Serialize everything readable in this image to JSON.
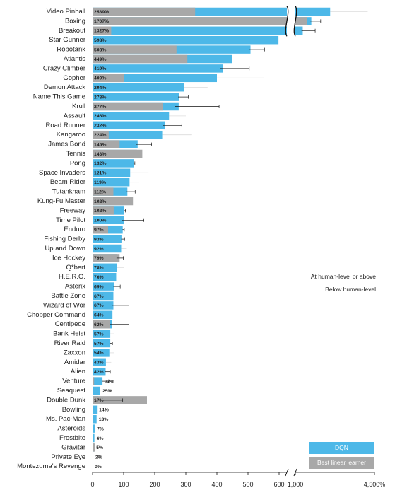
{
  "chart_data": {
    "type": "bar",
    "orientation": "horizontal",
    "x_scale": "broken",
    "x_breaks": [
      [
        650,
        1000
      ]
    ],
    "xlim": [
      0,
      4500
    ],
    "x_ticks": [
      {
        "value": 0,
        "label": "0"
      },
      {
        "value": 100,
        "label": "100"
      },
      {
        "value": 200,
        "label": "200"
      },
      {
        "value": 300,
        "label": "300"
      },
      {
        "value": 400,
        "label": "400"
      },
      {
        "value": 500,
        "label": "500"
      },
      {
        "value": 600,
        "label": "600"
      },
      {
        "value": 1000,
        "label": "1,000"
      },
      {
        "value": 4500,
        "label": "4,500%"
      }
    ],
    "annotations": {
      "above": "At human-level or above",
      "below": "Below human-level"
    },
    "legend": {
      "placement": "bottom-right",
      "entries": [
        {
          "name": "DQN",
          "color": "#4db8e8"
        },
        {
          "name": "Best linear learner",
          "color": "#a8a8a8"
        }
      ]
    },
    "series": [
      {
        "name": "DQN",
        "color": "#4db8e8"
      },
      {
        "name": "Best linear learner",
        "color": "#a8a8a8"
      }
    ],
    "games": [
      {
        "name": "Video Pinball",
        "dqn": 2539,
        "linear": 330,
        "label": "2539%",
        "err": 0,
        "light": 4200
      },
      {
        "name": "Boxing",
        "dqn": 1707,
        "linear": 1500,
        "label": "1707%",
        "err": 30,
        "light": 0
      },
      {
        "name": "Breakout",
        "dqn": 1327,
        "linear": 60,
        "label": "1327%",
        "err": 40,
        "light": 0
      },
      {
        "name": "Star Gunner",
        "dqn": 598,
        "linear": 0,
        "label": "598%",
        "err": 0,
        "light": 0
      },
      {
        "name": "Robotank",
        "dqn": 508,
        "linear": 270,
        "label": "508%",
        "err": 45,
        "light": 0
      },
      {
        "name": "Atlantis",
        "dqn": 449,
        "linear": 305,
        "label": "449%",
        "err": 0,
        "light": 590
      },
      {
        "name": "Crazy Climber",
        "dqn": 419,
        "linear": 0,
        "label": "419%",
        "err": 85,
        "light": 0
      },
      {
        "name": "Gopher",
        "dqn": 400,
        "linear": 102,
        "label": "400%",
        "err": 0,
        "light": 550
      },
      {
        "name": "Demon Attack",
        "dqn": 294,
        "linear": 0,
        "label": "294%",
        "err": 0,
        "light": 370
      },
      {
        "name": "Name This Game",
        "dqn": 278,
        "linear": 0,
        "label": "278%",
        "err": 30,
        "light": 0
      },
      {
        "name": "Krull",
        "dqn": 277,
        "linear": 225,
        "label": "277%",
        "err": 130,
        "light": 0
      },
      {
        "name": "Assault",
        "dqn": 246,
        "linear": 0,
        "label": "246%",
        "err": 0,
        "light": 300
      },
      {
        "name": "Road Runner",
        "dqn": 232,
        "linear": 0,
        "label": "232%",
        "err": 55,
        "light": 0
      },
      {
        "name": "Kangaroo",
        "dqn": 224,
        "linear": 52,
        "label": "224%",
        "err": 0,
        "light": 320
      },
      {
        "name": "James Bond",
        "dqn": 145,
        "linear": 87,
        "label": "145%",
        "err": 45,
        "light": 0
      },
      {
        "name": "Tennis",
        "dqn": 143,
        "linear": 160,
        "label": "143%",
        "err": 0,
        "light": 0
      },
      {
        "name": "Pong",
        "dqn": 132,
        "linear": 0,
        "label": "132%",
        "err": 4,
        "light": 0
      },
      {
        "name": "Space Invaders",
        "dqn": 121,
        "linear": 0,
        "label": "121%",
        "err": 0,
        "light": 180
      },
      {
        "name": "Beam Rider",
        "dqn": 119,
        "linear": 0,
        "label": "119%",
        "err": 0,
        "light": 150
      },
      {
        "name": "Tutankham",
        "dqn": 112,
        "linear": 67,
        "label": "112%",
        "err": 25,
        "light": 0
      },
      {
        "name": "Kung-Fu Master",
        "dqn": 102,
        "linear": 130,
        "label": "102%",
        "err": 0,
        "light": 0
      },
      {
        "name": "Freeway",
        "dqn": 102,
        "linear": 68,
        "label": "102%",
        "err": 4,
        "light": 0
      },
      {
        "name": "Time Pilot",
        "dqn": 100,
        "linear": 0,
        "label": "100%",
        "err": 65,
        "light": 0
      },
      {
        "name": "Enduro",
        "dqn": 97,
        "linear": 50,
        "label": "97%",
        "err": 5,
        "light": 0
      },
      {
        "name": "Fishing Derby",
        "dqn": 93,
        "linear": 0,
        "label": "93%",
        "err": 10,
        "light": 0
      },
      {
        "name": "Up and Down",
        "dqn": 92,
        "linear": 0,
        "label": "92%",
        "err": 0,
        "light": 110
      },
      {
        "name": "Ice Hockey",
        "dqn": 79,
        "linear": 87,
        "label": "79%",
        "err": 20,
        "light": 0
      },
      {
        "name": "Q*bert",
        "dqn": 78,
        "linear": 0,
        "label": "78%",
        "err": 0,
        "light": 100
      },
      {
        "name": "H.E.R.O.",
        "dqn": 76,
        "linear": 0,
        "label": "76%",
        "err": 0,
        "light": 0
      },
      {
        "name": "Asterix",
        "dqn": 69,
        "linear": 0,
        "label": "69%",
        "err": 20,
        "light": 0
      },
      {
        "name": "Battle Zone",
        "dqn": 67,
        "linear": 0,
        "label": "67%",
        "err": 0,
        "light": 90
      },
      {
        "name": "Wizard of Wor",
        "dqn": 67,
        "linear": 0,
        "label": "67%",
        "err": 50,
        "light": 0
      },
      {
        "name": "Chopper Command",
        "dqn": 64,
        "linear": 0,
        "label": "64%",
        "err": 0,
        "light": 0
      },
      {
        "name": "Centipede",
        "dqn": 62,
        "linear": 55,
        "label": "62%",
        "err": 55,
        "light": 0
      },
      {
        "name": "Bank Heist",
        "dqn": 57,
        "linear": 0,
        "label": "57%",
        "err": 0,
        "light": 70
      },
      {
        "name": "River Raid",
        "dqn": 57,
        "linear": 0,
        "label": "57%",
        "err": 7,
        "light": 0
      },
      {
        "name": "Zaxxon",
        "dqn": 54,
        "linear": 0,
        "label": "54%",
        "err": 0,
        "light": 70
      },
      {
        "name": "Amidar",
        "dqn": 43,
        "linear": 0,
        "label": "43%",
        "err": 0,
        "light": 60
      },
      {
        "name": "Alien",
        "dqn": 42,
        "linear": 0,
        "label": "42%",
        "err": 15,
        "light": 0
      },
      {
        "name": "Venture",
        "dqn": 32,
        "linear": 5,
        "label": "32%",
        "err": 20,
        "light": 0
      },
      {
        "name": "Seaquest",
        "dqn": 25,
        "linear": 0,
        "label": "25%",
        "err": 0,
        "light": 0
      },
      {
        "name": "Double Dunk",
        "dqn": 17,
        "linear": 175,
        "label": "17%",
        "err": 80,
        "light": 0
      },
      {
        "name": "Bowling",
        "dqn": 14,
        "linear": 0,
        "label": "14%",
        "err": 0,
        "light": 0
      },
      {
        "name": "Ms. Pac-Man",
        "dqn": 13,
        "linear": 0,
        "label": "13%",
        "err": 0,
        "light": 0
      },
      {
        "name": "Asteroids",
        "dqn": 7,
        "linear": 0,
        "label": "7%",
        "err": 0,
        "light": 0
      },
      {
        "name": "Frostbite",
        "dqn": 6,
        "linear": 0,
        "label": "6%",
        "err": 0,
        "light": 0
      },
      {
        "name": "Gravitar",
        "dqn": 5,
        "linear": 8,
        "label": "5%",
        "err": 0,
        "light": 0
      },
      {
        "name": "Private Eye",
        "dqn": 2,
        "linear": 0,
        "label": "2%",
        "err": 0,
        "light": 0
      },
      {
        "name": "Montezuma's Revenge",
        "dqn": 0,
        "linear": 0,
        "label": "0%",
        "err": 0,
        "light": 0
      }
    ]
  }
}
